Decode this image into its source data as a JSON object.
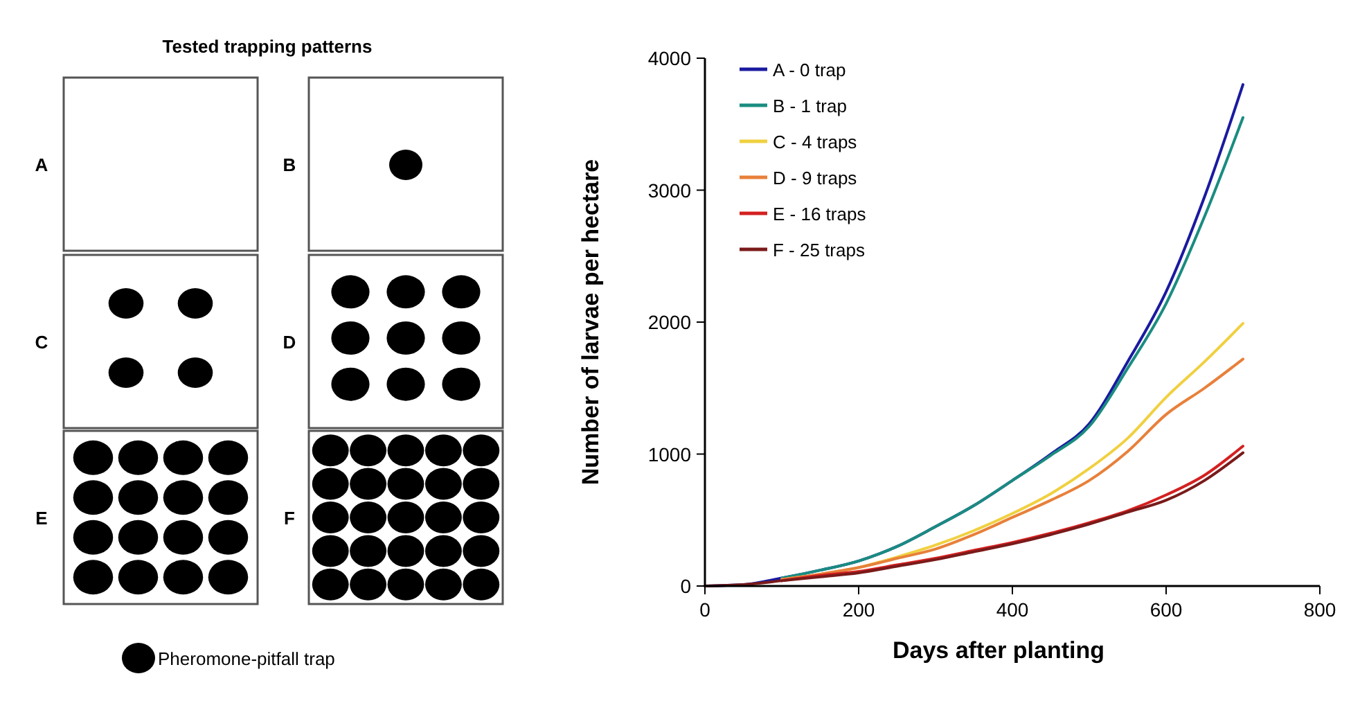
{
  "chart_data": [
    {
      "type": "other",
      "title": "Tested trapping patterns",
      "annotations": [
        "A",
        "B",
        "C",
        "D",
        "E",
        "F",
        "Pheromone-pitfall trap"
      ]
    },
    {
      "type": "line",
      "xlabel": "Days after planting",
      "ylabel": "Number of larvae per hectare",
      "x": [
        0,
        50,
        100,
        150,
        200,
        250,
        300,
        350,
        400,
        450,
        500,
        550,
        600,
        650,
        700
      ],
      "xlim": [
        0,
        800
      ],
      "xticks": [
        0,
        200,
        400,
        600,
        800
      ],
      "ylim": [
        0,
        4000
      ],
      "yticks": [
        0,
        1000,
        2000,
        3000,
        4000
      ],
      "legend": "top left",
      "grid": false,
      "marker": "none",
      "line_style": "solid",
      "series": [
        {
          "name": "A - 0 trap",
          "color": "#1a1aa0",
          "values": [
            0,
            10,
            60,
            120,
            190,
            300,
            450,
            610,
            800,
            1000,
            1230,
            1700,
            2230,
            2950,
            3800
          ]
        },
        {
          "name": "B - 1 trap",
          "color": "#1a8c80",
          "values": [
            null,
            null,
            60,
            120,
            190,
            300,
            450,
            610,
            800,
            990,
            1210,
            1650,
            2140,
            2800,
            3550
          ]
        },
        {
          "name": "C - 4 traps",
          "color": "#f0d040",
          "values": [
            null,
            null,
            50,
            90,
            140,
            220,
            310,
            420,
            550,
            700,
            890,
            1120,
            1430,
            1700,
            1990
          ]
        },
        {
          "name": "D - 9 traps",
          "color": "#e8803a",
          "values": [
            null,
            null,
            50,
            90,
            140,
            210,
            280,
            390,
            520,
            650,
            800,
            1020,
            1300,
            1500,
            1720
          ]
        },
        {
          "name": "E - 16 traps",
          "color": "#d42020",
          "values": [
            null,
            null,
            40,
            80,
            110,
            160,
            210,
            270,
            330,
            400,
            480,
            570,
            690,
            840,
            1060
          ]
        },
        {
          "name": "F - 25 traps",
          "color": "#7a1a1a",
          "values": [
            0,
            10,
            40,
            70,
            100,
            150,
            200,
            260,
            320,
            390,
            470,
            560,
            650,
            800,
            1010
          ]
        }
      ]
    }
  ]
}
